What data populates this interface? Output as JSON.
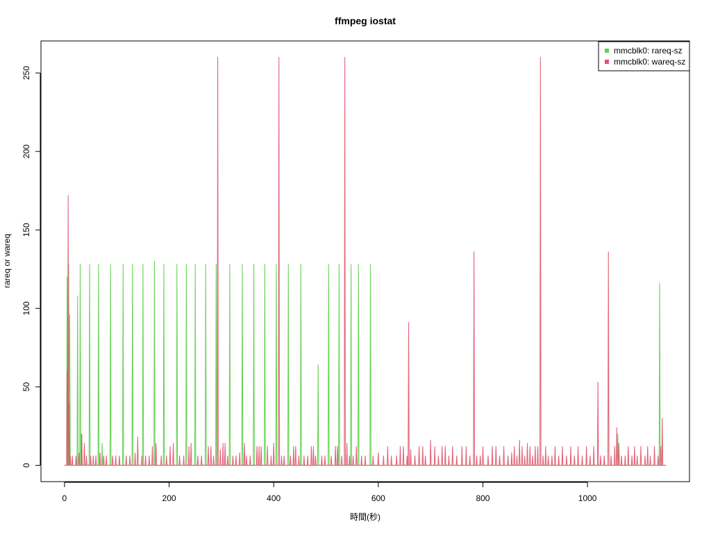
{
  "chart_data": {
    "type": "line",
    "title": "ffmpeg iostat",
    "xlabel": "時間(秒)",
    "ylabel": "rareq or wareq",
    "xlim": [
      -45,
      1195
    ],
    "ylim": [
      -10.4,
      270.4
    ],
    "xticks": [
      0,
      200,
      400,
      600,
      800,
      1000
    ],
    "yticks": [
      0,
      50,
      100,
      150,
      200,
      250
    ],
    "legend_position": "top-right",
    "grid": false,
    "series": [
      {
        "name": "mmcblk0: rareq-sz",
        "color": "#61D04F",
        "x_end": 1150,
        "baseline": 0,
        "spikes": [
          [
            5,
            120
          ],
          [
            8,
            128
          ],
          [
            10,
            96
          ],
          [
            25,
            108
          ],
          [
            30,
            128
          ],
          [
            32,
            20
          ],
          [
            48,
            128
          ],
          [
            65,
            128
          ],
          [
            72,
            14
          ],
          [
            88,
            128
          ],
          [
            112,
            128
          ],
          [
            130,
            128
          ],
          [
            150,
            128
          ],
          [
            172,
            130
          ],
          [
            190,
            128
          ],
          [
            215,
            128
          ],
          [
            233,
            128
          ],
          [
            250,
            128
          ],
          [
            270,
            128
          ],
          [
            290,
            128
          ],
          [
            316,
            128
          ],
          [
            340,
            128
          ],
          [
            362,
            128
          ],
          [
            383,
            128
          ],
          [
            405,
            128
          ],
          [
            428,
            128
          ],
          [
            452,
            128
          ],
          [
            485,
            64
          ],
          [
            505,
            128
          ],
          [
            525,
            128
          ],
          [
            548,
            128
          ],
          [
            562,
            128
          ],
          [
            585,
            128
          ],
          [
            1058,
            20
          ],
          [
            1138,
            116
          ]
        ]
      },
      {
        "name": "mmcblk0: wareq-sz",
        "color": "#DF536B",
        "x_end": 1150,
        "baseline": 0,
        "spikes": [
          [
            5,
            60
          ],
          [
            7,
            172
          ],
          [
            9,
            40
          ],
          [
            11,
            6
          ],
          [
            15,
            6
          ],
          [
            22,
            6
          ],
          [
            28,
            8
          ],
          [
            33,
            20
          ],
          [
            38,
            14
          ],
          [
            42,
            6
          ],
          [
            50,
            6
          ],
          [
            55,
            6
          ],
          [
            60,
            6
          ],
          [
            68,
            8
          ],
          [
            75,
            6
          ],
          [
            80,
            6
          ],
          [
            92,
            6
          ],
          [
            98,
            6
          ],
          [
            105,
            6
          ],
          [
            118,
            6
          ],
          [
            125,
            6
          ],
          [
            135,
            8
          ],
          [
            140,
            18
          ],
          [
            148,
            6
          ],
          [
            155,
            6
          ],
          [
            162,
            6
          ],
          [
            168,
            12
          ],
          [
            175,
            14
          ],
          [
            185,
            6
          ],
          [
            195,
            6
          ],
          [
            202,
            12
          ],
          [
            208,
            14
          ],
          [
            220,
            6
          ],
          [
            228,
            6
          ],
          [
            238,
            12
          ],
          [
            242,
            14
          ],
          [
            255,
            6
          ],
          [
            262,
            6
          ],
          [
            275,
            12
          ],
          [
            280,
            12
          ],
          [
            285,
            6
          ],
          [
            293,
            260
          ],
          [
            298,
            10
          ],
          [
            303,
            14
          ],
          [
            307,
            14
          ],
          [
            312,
            6
          ],
          [
            322,
            6
          ],
          [
            328,
            6
          ],
          [
            335,
            8
          ],
          [
            344,
            14
          ],
          [
            348,
            6
          ],
          [
            355,
            6
          ],
          [
            368,
            12
          ],
          [
            372,
            12
          ],
          [
            376,
            12
          ],
          [
            388,
            12
          ],
          [
            395,
            6
          ],
          [
            400,
            14
          ],
          [
            410,
            260
          ],
          [
            415,
            6
          ],
          [
            420,
            6
          ],
          [
            432,
            6
          ],
          [
            438,
            12
          ],
          [
            442,
            12
          ],
          [
            448,
            6
          ],
          [
            458,
            6
          ],
          [
            465,
            6
          ],
          [
            472,
            12
          ],
          [
            476,
            12
          ],
          [
            480,
            6
          ],
          [
            492,
            6
          ],
          [
            498,
            6
          ],
          [
            510,
            6
          ],
          [
            518,
            12
          ],
          [
            522,
            12
          ],
          [
            530,
            6
          ],
          [
            536,
            260
          ],
          [
            540,
            14
          ],
          [
            545,
            6
          ],
          [
            552,
            6
          ],
          [
            558,
            12
          ],
          [
            568,
            6
          ],
          [
            575,
            6
          ],
          [
            590,
            6
          ],
          [
            600,
            8
          ],
          [
            610,
            6
          ],
          [
            618,
            12
          ],
          [
            625,
            6
          ],
          [
            635,
            6
          ],
          [
            642,
            12
          ],
          [
            648,
            12
          ],
          [
            655,
            6
          ],
          [
            658,
            91
          ],
          [
            662,
            10
          ],
          [
            670,
            6
          ],
          [
            678,
            12
          ],
          [
            685,
            12
          ],
          [
            690,
            6
          ],
          [
            700,
            16
          ],
          [
            708,
            12
          ],
          [
            715,
            6
          ],
          [
            722,
            12
          ],
          [
            728,
            12
          ],
          [
            735,
            6
          ],
          [
            742,
            12
          ],
          [
            750,
            6
          ],
          [
            760,
            12
          ],
          [
            768,
            12
          ],
          [
            775,
            6
          ],
          [
            783,
            136
          ],
          [
            788,
            6
          ],
          [
            795,
            6
          ],
          [
            800,
            12
          ],
          [
            810,
            6
          ],
          [
            818,
            12
          ],
          [
            825,
            12
          ],
          [
            832,
            6
          ],
          [
            840,
            12
          ],
          [
            848,
            6
          ],
          [
            855,
            8
          ],
          [
            860,
            12
          ],
          [
            865,
            6
          ],
          [
            870,
            16
          ],
          [
            875,
            12
          ],
          [
            880,
            6
          ],
          [
            885,
            14
          ],
          [
            890,
            12
          ],
          [
            895,
            6
          ],
          [
            900,
            12
          ],
          [
            905,
            12
          ],
          [
            910,
            260
          ],
          [
            915,
            6
          ],
          [
            920,
            12
          ],
          [
            925,
            6
          ],
          [
            932,
            6
          ],
          [
            938,
            12
          ],
          [
            945,
            6
          ],
          [
            952,
            12
          ],
          [
            960,
            6
          ],
          [
            968,
            12
          ],
          [
            975,
            6
          ],
          [
            982,
            12
          ],
          [
            990,
            6
          ],
          [
            998,
            12
          ],
          [
            1005,
            6
          ],
          [
            1012,
            12
          ],
          [
            1020,
            53
          ],
          [
            1025,
            6
          ],
          [
            1032,
            6
          ],
          [
            1040,
            136
          ],
          [
            1045,
            6
          ],
          [
            1052,
            12
          ],
          [
            1056,
            24
          ],
          [
            1060,
            14
          ],
          [
            1065,
            6
          ],
          [
            1072,
            6
          ],
          [
            1078,
            12
          ],
          [
            1085,
            6
          ],
          [
            1090,
            12
          ],
          [
            1095,
            6
          ],
          [
            1102,
            12
          ],
          [
            1110,
            6
          ],
          [
            1115,
            12
          ],
          [
            1120,
            6
          ],
          [
            1128,
            12
          ],
          [
            1135,
            6
          ],
          [
            1140,
            12
          ],
          [
            1143,
            30
          ]
        ]
      }
    ]
  }
}
